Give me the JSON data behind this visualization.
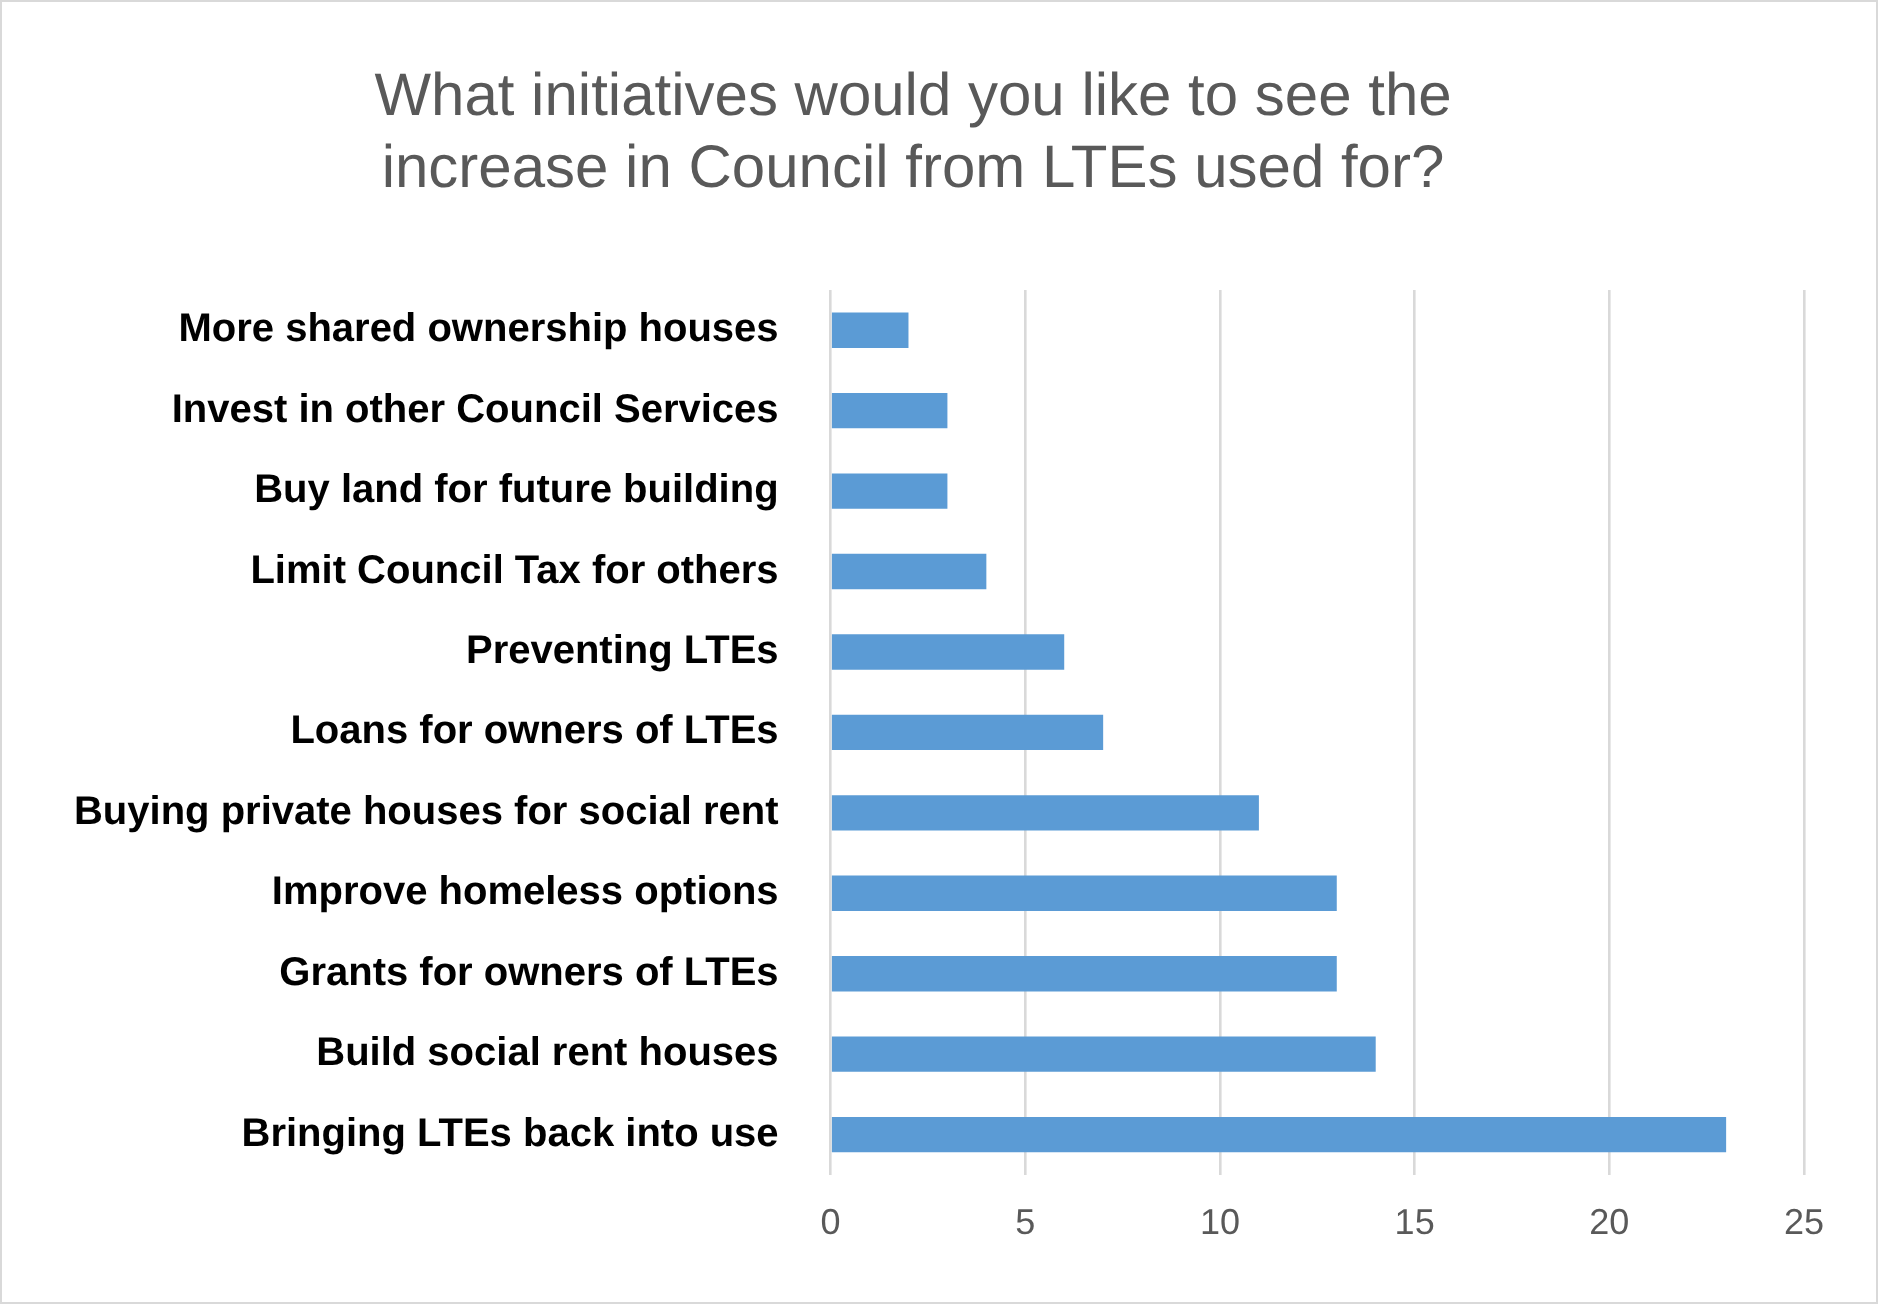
{
  "chart_data": {
    "type": "bar",
    "orientation": "horizontal",
    "title": "What initiatives would you like to see the increase in Council from LTEs used for?",
    "categories": [
      "More shared ownership houses",
      "Invest in other Council Services",
      "Buy land for future building",
      "Limit Council Tax for others",
      "Preventing LTEs",
      "Loans for owners of LTEs",
      "Buying private houses for social rent",
      "Improve homeless options",
      "Grants for owners of LTEs",
      "Build social rent houses",
      "Bringing LTEs back into use"
    ],
    "values": [
      2,
      3,
      3,
      4,
      6,
      7,
      11,
      13,
      13,
      14,
      23
    ],
    "color": "#5b9bd5",
    "xlim": [
      0,
      25
    ],
    "xticks": [
      0,
      5,
      10,
      15,
      20,
      25
    ],
    "grid": "x",
    "legend": false
  }
}
